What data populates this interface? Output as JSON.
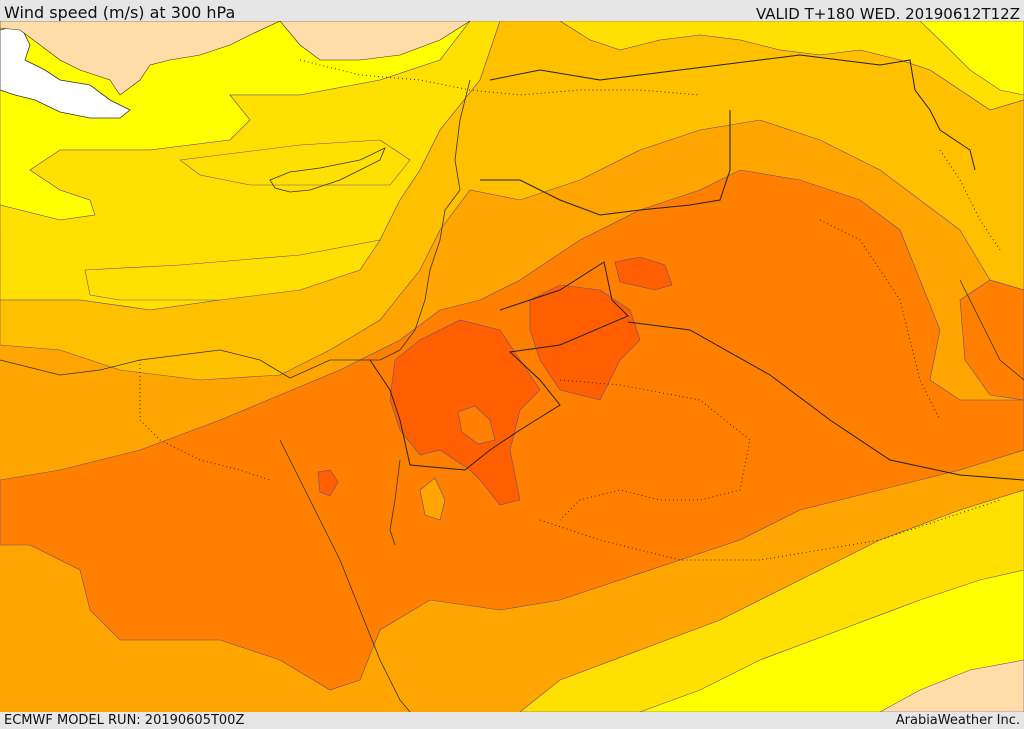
{
  "header": {
    "title": "Wind speed (m/s) at 300 hPa",
    "valid": "VALID T+180 WED. 20190612T12Z"
  },
  "footer": {
    "model_run": "ECMWF MODEL RUN: 20190605T00Z",
    "credit": "ArabiaWeather Inc."
  },
  "map": {
    "field": "wind speed 300 hPa",
    "colors": {
      "level_1": "#ffdca8",
      "level_2": "#ffff00",
      "level_3": "#ffe000",
      "level_4": "#ffc000",
      "level_5": "#ffa500",
      "level_6": "#ff7f00",
      "level_7": "#ff5f00",
      "land_no_data": "#ffffff"
    }
  }
}
